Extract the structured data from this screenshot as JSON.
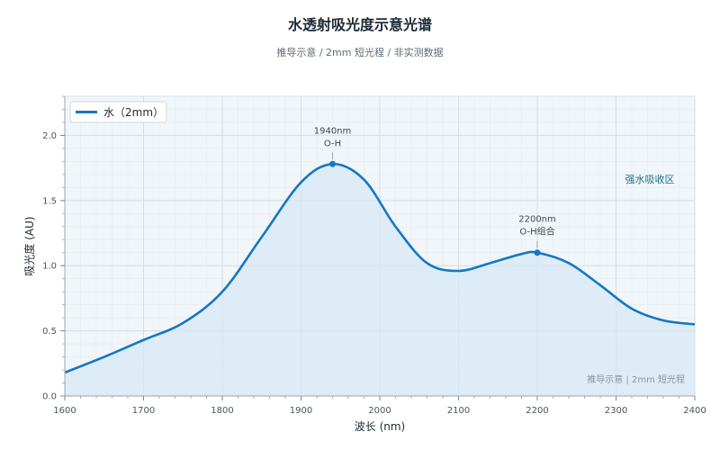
{
  "chart_data": {
    "type": "area",
    "title": "水透射吸光度示意光谱",
    "subtitle": "推导示意 / 2mm 短光程 / 非实测数据",
    "xlabel": "波长 (nm)",
    "ylabel": "吸光度 (AU)",
    "xlim": [
      1600,
      2400
    ],
    "ylim": [
      0,
      2.3
    ],
    "x_ticks": [
      1600,
      1700,
      1800,
      1900,
      2000,
      2100,
      2200,
      2300,
      2400
    ],
    "y_ticks": [
      0.0,
      0.5,
      1.0,
      1.5,
      2.0
    ],
    "x_tick_labels": [
      "1600",
      "1700",
      "1800",
      "1900",
      "2000",
      "2100",
      "2200",
      "2300",
      "2400"
    ],
    "y_tick_labels": [
      "0.0",
      "0.5",
      "1.0",
      "1.5",
      "2.0"
    ],
    "grid": true,
    "legend_position": "top-left",
    "series": [
      {
        "name": "水（2mm）",
        "color": "#1577c2",
        "x": [
          1600,
          1650,
          1700,
          1750,
          1800,
          1850,
          1900,
          1940,
          1980,
          2020,
          2060,
          2100,
          2140,
          2180,
          2200,
          2240,
          2280,
          2320,
          2360,
          2400
        ],
        "y": [
          0.18,
          0.3,
          0.43,
          0.56,
          0.8,
          1.22,
          1.64,
          1.78,
          1.66,
          1.3,
          1.02,
          0.96,
          1.02,
          1.09,
          1.1,
          1.02,
          0.85,
          0.67,
          0.58,
          0.55
        ]
      }
    ],
    "annotations": [
      {
        "x": 1940,
        "y": 1.78,
        "line1": "1940nm",
        "line2": "O-H"
      },
      {
        "x": 2200,
        "y": 1.1,
        "line1": "2200nm",
        "line2": "O-H组合"
      }
    ],
    "region_label": "强水吸收区",
    "footnote": "推导示意 | 2mm 短光程"
  }
}
